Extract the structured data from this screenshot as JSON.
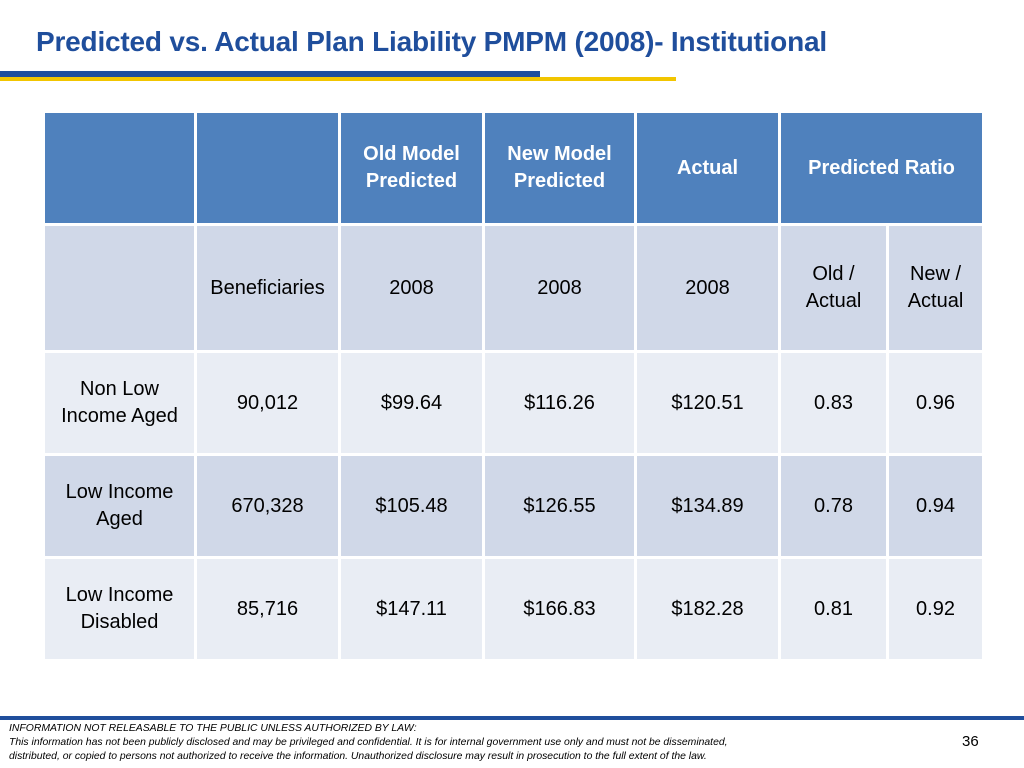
{
  "title": "Predicted vs. Actual Plan Liability PMPM (2008)- Institutional",
  "table": {
    "header": {
      "col1": "",
      "col2": "",
      "old_model": "Old Model Predicted",
      "new_model": "New Model Predicted",
      "actual": "Actual",
      "predicted_ratio": "Predicted Ratio"
    },
    "subheader": {
      "col1": "",
      "beneficiaries": "Beneficiaries",
      "old_year": "2008",
      "new_year": "2008",
      "actual_year": "2008",
      "old_actual": "Old / Actual",
      "new_actual": "New / Actual"
    },
    "rows": [
      {
        "label": "Non Low Income Aged",
        "beneficiaries": "90,012",
        "old": "$99.64",
        "new": "$116.26",
        "actual": "$120.51",
        "old_ratio": "0.83",
        "new_ratio": "0.96"
      },
      {
        "label": "Low Income Aged",
        "beneficiaries": "670,328",
        "old": "$105.48",
        "new": "$126.55",
        "actual": "$134.89",
        "old_ratio": "0.78",
        "new_ratio": "0.94"
      },
      {
        "label": "Low Income Disabled",
        "beneficiaries": "85,716",
        "old": "$147.11",
        "new": "$166.83",
        "actual": "$182.28",
        "old_ratio": "0.81",
        "new_ratio": "0.92"
      }
    ]
  },
  "footer": {
    "line1": "INFORMATION NOT RELEASABLE TO THE PUBLIC UNLESS AUTHORIZED BY LAW:",
    "line2": "This information has not been publicly disclosed and may be privileged and confidential.  It is for internal government use only and must not be disseminated,",
    "line3": "distributed, or copied to persons not authorized to receive the information.  Unauthorized disclosure may result in prosecution to the full extent of the law."
  },
  "page_number": "36",
  "colors": {
    "title": "#1f4e9c",
    "header_fill": "#4f81bd",
    "band_dark": "#d0d8e8",
    "band_light": "#e9edf4",
    "accent_yellow": "#f2c500"
  }
}
